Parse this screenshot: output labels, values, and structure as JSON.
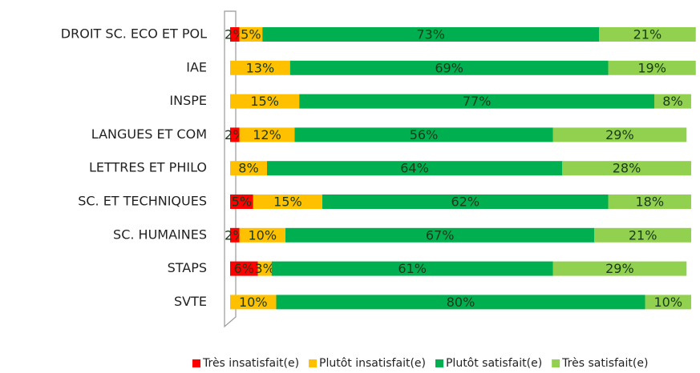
{
  "chart_data": {
    "type": "stacked-bar-horizontal",
    "categories": [
      "DROIT SC. ECO ET POL",
      "IAE",
      "INSPE",
      "LANGUES ET COM",
      "LETTRES ET PHILO",
      "SC. ET TECHNIQUES",
      "SC. HUMAINES",
      "STAPS",
      "SVTE"
    ],
    "series": [
      {
        "name": "Très insatisfait(e)",
        "color": "#ff0000",
        "values": [
          2,
          null,
          null,
          2,
          null,
          5,
          2,
          6,
          null
        ],
        "value_labels": [
          "2%",
          null,
          null,
          "2%",
          null,
          "5%",
          "2%",
          "6%",
          null
        ]
      },
      {
        "name": "Plutôt insatisfait(e)",
        "color": "#ffc000",
        "values": [
          5,
          13,
          15,
          12,
          8,
          15,
          10,
          3,
          10
        ],
        "value_labels": [
          "5%",
          "13%",
          "15%",
          "12%",
          "8%",
          "15%",
          "10%",
          "3%",
          "10%"
        ]
      },
      {
        "name": "Plutôt satisfait(e)",
        "color": "#00b050",
        "values": [
          73,
          69,
          77,
          56,
          64,
          62,
          67,
          61,
          80
        ],
        "value_labels": [
          "73%",
          "69%",
          "77%",
          "56%",
          "64%",
          "62%",
          "67%",
          "61%",
          "80%"
        ]
      },
      {
        "name": "Très satisfait(e)",
        "color": "#92d050",
        "values": [
          21,
          19,
          8,
          29,
          28,
          18,
          21,
          29,
          10
        ],
        "value_labels": [
          "21%",
          "19%",
          "8%",
          "29%",
          "28%",
          "18%",
          "21%",
          "29%",
          "10%"
        ]
      }
    ],
    "xlim": [
      0,
      100
    ],
    "legend": "bottom"
  }
}
